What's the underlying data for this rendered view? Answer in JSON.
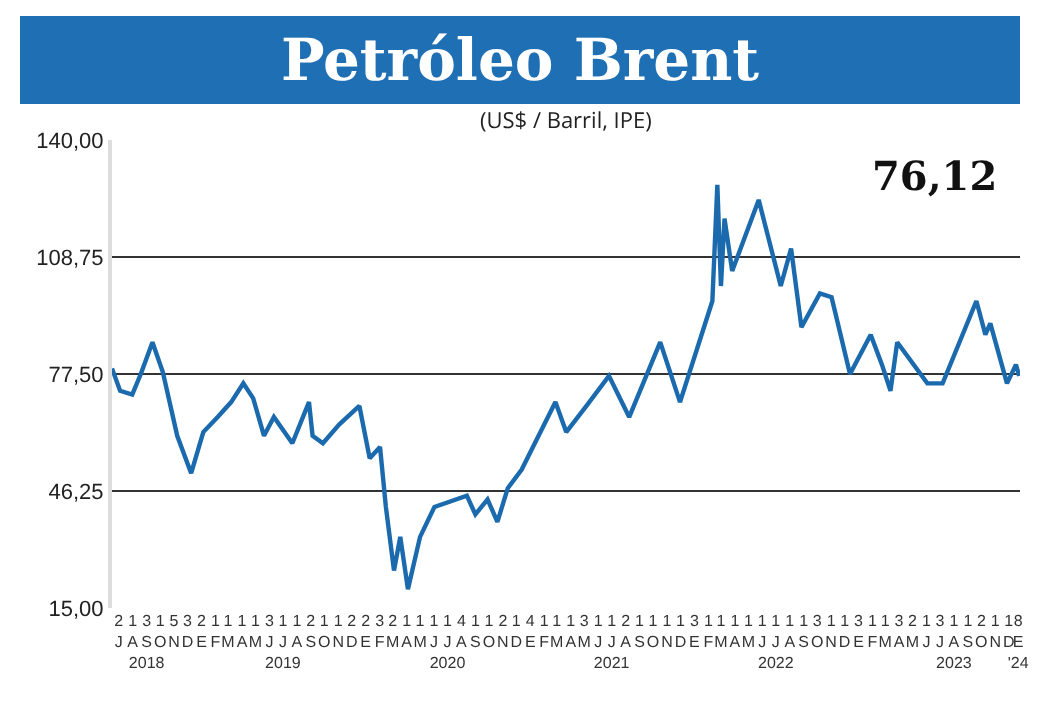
{
  "chart_data": {
    "type": "line",
    "title": "Petróleo Brent",
    "subtitle": "(US$ / Barril, IPE)",
    "annotations": [
      "76,12"
    ],
    "x": [
      "2018-07-01",
      "2018-07-19",
      "2018-08-15",
      "2018-09-03",
      "2018-09-29",
      "2018-10-22",
      "2018-11-23",
      "2018-12-24",
      "2019-01-20",
      "2019-02-21",
      "2019-03-23",
      "2019-04-19",
      "2019-05-11",
      "2019-06-04",
      "2019-06-26",
      "2019-08-06",
      "2019-09-12",
      "2019-09-20",
      "2019-10-13",
      "2019-11-18",
      "2020-01-02",
      "2020-01-25",
      "2020-02-17",
      "2020-03-01",
      "2020-03-19",
      "2020-04-02",
      "2020-04-19",
      "2020-05-16",
      "2020-06-17",
      "2020-08-28",
      "2020-09-16",
      "2020-10-13",
      "2020-11-04",
      "2020-11-27",
      "2020-12-28",
      "2021-03-13",
      "2021-04-06",
      "2021-05-21",
      "2021-07-10",
      "2021-08-24",
      "2021-11-01",
      "2021-12-15",
      "2022-02-25",
      "2022-03-08",
      "2022-03-16",
      "2022-03-24",
      "2022-04-10",
      "2022-06-08",
      "2022-07-27",
      "2022-08-19",
      "2022-09-11",
      "2022-10-22",
      "2022-11-17",
      "2022-12-28",
      "2023-02-12",
      "2023-03-09",
      "2023-03-28",
      "2023-04-12",
      "2023-06-18",
      "2023-07-22",
      "2023-10-05",
      "2023-10-25",
      "2023-11-05",
      "2023-12-12",
      "2024-01-01",
      "2024-01-08"
    ],
    "series": [
      {
        "color": "#1a6aad",
        "values": [
          79,
          73,
          72,
          77.5,
          86,
          78,
          61,
          51,
          62,
          66,
          70,
          75,
          71,
          61,
          66,
          59,
          70,
          61,
          59,
          64,
          69,
          55,
          58,
          42,
          25,
          34,
          20,
          34,
          42,
          45,
          40,
          44,
          38,
          47,
          52,
          70,
          62,
          69,
          77,
          66,
          86,
          70,
          97,
          128,
          101,
          119,
          105,
          124,
          101,
          111,
          90,
          99,
          98,
          77.5,
          88,
          80,
          73,
          86,
          75,
          75,
          97,
          88,
          91,
          75,
          80,
          77
        ]
      }
    ],
    "ylim": [
      15,
      140
    ],
    "yticks": [
      {
        "value": 15,
        "label": "15,00"
      },
      {
        "value": 46.25,
        "label": "46,25"
      },
      {
        "value": 77.5,
        "label": "77,50"
      },
      {
        "value": 108.75,
        "label": "108,75"
      },
      {
        "value": 140,
        "label": "140,00"
      }
    ],
    "xlim": [
      "2018-07-01",
      "2024-01-10"
    ],
    "xticks": [
      {
        "value": "2018-07-16",
        "label": "2\nJ"
      },
      {
        "value": "2018-08-16",
        "label": "1\nA"
      },
      {
        "value": "2018-09-16",
        "label": "3\nS\n2018"
      },
      {
        "value": "2018-10-16",
        "label": "1\nO"
      },
      {
        "value": "2018-11-16",
        "label": "5\nN"
      },
      {
        "value": "2018-12-16",
        "label": "3\nD"
      },
      {
        "value": "2019-01-16",
        "label": "2\nE"
      },
      {
        "value": "2019-02-16",
        "label": "1\nF"
      },
      {
        "value": "2019-03-16",
        "label": "1\nM"
      },
      {
        "value": "2019-04-16",
        "label": "1\nA"
      },
      {
        "value": "2019-05-16",
        "label": "1\nM"
      },
      {
        "value": "2019-06-16",
        "label": "3\nJ"
      },
      {
        "value": "2019-07-16",
        "label": "1\nJ\n2019"
      },
      {
        "value": "2019-08-16",
        "label": "1\nA"
      },
      {
        "value": "2019-09-16",
        "label": "2\nS"
      },
      {
        "value": "2019-10-16",
        "label": "1\nO"
      },
      {
        "value": "2019-11-16",
        "label": "1\nN"
      },
      {
        "value": "2019-12-16",
        "label": "2\nD"
      },
      {
        "value": "2020-01-16",
        "label": "2\nE"
      },
      {
        "value": "2020-02-16",
        "label": "3\nF"
      },
      {
        "value": "2020-03-16",
        "label": "2\nM"
      },
      {
        "value": "2020-04-16",
        "label": "1\nA"
      },
      {
        "value": "2020-05-16",
        "label": "1\nM"
      },
      {
        "value": "2020-06-16",
        "label": "1\nJ"
      },
      {
        "value": "2020-07-16",
        "label": "1\nJ\n2020"
      },
      {
        "value": "2020-08-16",
        "label": "4\nA"
      },
      {
        "value": "2020-09-16",
        "label": "1\nS"
      },
      {
        "value": "2020-10-16",
        "label": "1\nO"
      },
      {
        "value": "2020-11-16",
        "label": "2\nN"
      },
      {
        "value": "2020-12-16",
        "label": "1\nD"
      },
      {
        "value": "2021-01-16",
        "label": "4\nE"
      },
      {
        "value": "2021-02-16",
        "label": "1\nF"
      },
      {
        "value": "2021-03-16",
        "label": "1\nM"
      },
      {
        "value": "2021-04-16",
        "label": "1\nA"
      },
      {
        "value": "2021-05-16",
        "label": "3\nM"
      },
      {
        "value": "2021-06-16",
        "label": "1\nJ"
      },
      {
        "value": "2021-07-16",
        "label": "1\nJ\n2021"
      },
      {
        "value": "2021-08-16",
        "label": "2\nA"
      },
      {
        "value": "2021-09-16",
        "label": "1\nS"
      },
      {
        "value": "2021-10-16",
        "label": "1\nO"
      },
      {
        "value": "2021-11-16",
        "label": "1\nN"
      },
      {
        "value": "2021-12-16",
        "label": "1\nD"
      },
      {
        "value": "2022-01-16",
        "label": "3\nE"
      },
      {
        "value": "2022-02-16",
        "label": "1\nF"
      },
      {
        "value": "2022-03-16",
        "label": "1\nM"
      },
      {
        "value": "2022-04-16",
        "label": "1\nA"
      },
      {
        "value": "2022-05-16",
        "label": "1\nM"
      },
      {
        "value": "2022-06-16",
        "label": "1\nJ"
      },
      {
        "value": "2022-07-16",
        "label": "1\nJ\n2022"
      },
      {
        "value": "2022-08-16",
        "label": "1\nA"
      },
      {
        "value": "2022-09-16",
        "label": "1\nS"
      },
      {
        "value": "2022-10-16",
        "label": "3\nO"
      },
      {
        "value": "2022-11-16",
        "label": "1\nN"
      },
      {
        "value": "2022-12-16",
        "label": "1\nD"
      },
      {
        "value": "2023-01-16",
        "label": "3\nE"
      },
      {
        "value": "2023-02-16",
        "label": "1\nF"
      },
      {
        "value": "2023-03-16",
        "label": "1\nM"
      },
      {
        "value": "2023-04-16",
        "label": "3\nA"
      },
      {
        "value": "2023-05-16",
        "label": "2\nM"
      },
      {
        "value": "2023-06-16",
        "label": "1\nJ"
      },
      {
        "value": "2023-07-16",
        "label": "3\nJ"
      },
      {
        "value": "2023-08-16",
        "label": "1\nA\n2023"
      },
      {
        "value": "2023-09-16",
        "label": "1\nS"
      },
      {
        "value": "2023-10-16",
        "label": "2\nO"
      },
      {
        "value": "2023-11-16",
        "label": "1\nN"
      },
      {
        "value": "2023-12-16",
        "label": "1\nD"
      },
      {
        "value": "2024-01-06",
        "label": "8\nE\n'24"
      }
    ],
    "grid": "y",
    "line_style": "solid"
  }
}
